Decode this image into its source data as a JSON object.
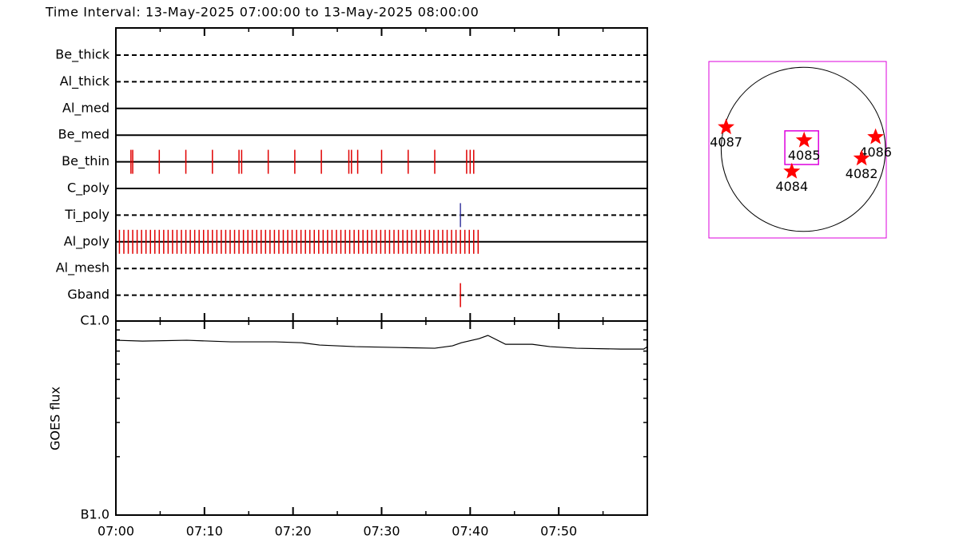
{
  "title": "Time Interval: 13-May-2025 07:00:00 to 13-May-2025 08:00:00",
  "chart_data": [
    {
      "type": "event",
      "color": "#e00000",
      "xlim": [
        0,
        60
      ],
      "minor_xticks": [
        5,
        15,
        25,
        35,
        45,
        55
      ],
      "rows": [
        {
          "name": "Be_thick",
          "style": "dashed",
          "events": []
        },
        {
          "name": "Al_thick",
          "style": "dashed",
          "events": []
        },
        {
          "name": "Al_med",
          "style": "solid",
          "events": []
        },
        {
          "name": "Be_med",
          "style": "solid",
          "events": []
        },
        {
          "name": "Be_thin",
          "style": "solid",
          "events": [
            1.7,
            1.9,
            4.9,
            7.9,
            10.9,
            13.9,
            14.2,
            17.2,
            20.2,
            23.2,
            26.3,
            26.6,
            27.3,
            30.0,
            33.0,
            36.0,
            39.6,
            40.0,
            40.4
          ]
        },
        {
          "name": "C_poly",
          "style": "solid",
          "events": []
        },
        {
          "name": "Ti_poly",
          "style": "dashed",
          "events": [
            38.9
          ],
          "color": "#3a3aa0"
        },
        {
          "name": "Al_poly",
          "style": "solid",
          "events": [
            0.4,
            0.9,
            1.4,
            1.9,
            2.4,
            2.9,
            3.4,
            3.9,
            4.4,
            4.9,
            5.4,
            5.9,
            6.4,
            6.9,
            7.4,
            7.9,
            8.4,
            8.9,
            9.4,
            9.9,
            10.4,
            10.9,
            11.4,
            11.9,
            12.4,
            12.9,
            13.4,
            13.9,
            14.4,
            14.9,
            15.4,
            15.9,
            16.4,
            16.9,
            17.4,
            17.9,
            18.4,
            18.9,
            19.4,
            19.9,
            20.4,
            20.9,
            21.4,
            21.9,
            22.4,
            22.9,
            23.4,
            23.9,
            24.4,
            24.9,
            25.4,
            25.9,
            26.4,
            26.9,
            27.4,
            27.9,
            28.4,
            28.9,
            29.4,
            29.9,
            30.4,
            30.9,
            31.4,
            31.9,
            32.4,
            32.9,
            33.4,
            33.9,
            34.4,
            34.9,
            35.4,
            35.9,
            36.4,
            36.9,
            37.4,
            37.9,
            38.4,
            38.9,
            39.4,
            39.9,
            40.4,
            40.9
          ]
        },
        {
          "name": "Al_mesh",
          "style": "dashed",
          "events": []
        },
        {
          "name": "Gband",
          "style": "dashed",
          "events": [
            38.9
          ]
        }
      ]
    },
    {
      "type": "line",
      "ylabel": "GOES flux",
      "color": "#000000",
      "log_scale": true,
      "xlim": [
        0,
        60
      ],
      "xticks": [
        {
          "value": 0,
          "label": "07:00"
        },
        {
          "value": 10,
          "label": "07:10"
        },
        {
          "value": 20,
          "label": "07:20"
        },
        {
          "value": 30,
          "label": "07:30"
        },
        {
          "value": 40,
          "label": "07:40"
        },
        {
          "value": 50,
          "label": "07:50"
        }
      ],
      "minor_xticks": [
        5,
        15,
        25,
        35,
        45,
        55
      ],
      "ylim": [
        1e-07,
        1e-06
      ],
      "yticks": [
        {
          "value": 1e-06,
          "label": "C1.0"
        },
        {
          "value": 1e-07,
          "label": "B1.0"
        }
      ],
      "minor_yticks": [
        2e-07,
        3e-07,
        4e-07,
        5e-07,
        6e-07,
        7e-07,
        8e-07,
        9e-07
      ],
      "x": [
        0,
        3,
        8,
        13,
        18,
        21,
        23,
        27,
        32,
        36,
        38,
        39,
        41,
        42,
        44,
        47,
        49,
        52,
        57,
        59.6,
        60
      ],
      "values": [
        7.96e-07,
        7.88e-07,
        7.96e-07,
        7.81e-07,
        7.81e-07,
        7.73e-07,
        7.52e-07,
        7.38e-07,
        7.3e-07,
        7.24e-07,
        7.45e-07,
        7.73e-07,
        8.11e-07,
        8.43e-07,
        7.59e-07,
        7.59e-07,
        7.38e-07,
        7.24e-07,
        7.17e-07,
        7.17e-07,
        7.38e-07
      ]
    },
    {
      "type": "scatter",
      "color": "#ff0000",
      "frame_color": "#dd00dd",
      "xlim": [
        -1.15,
        1.01
      ],
      "ylim": [
        -1.08,
        1.07
      ],
      "disk_radius": 1,
      "fov": {
        "center": [
          -0.02,
          0.02
        ],
        "size": 0.41
      },
      "labels": [
        "4087",
        "4085",
        "4086",
        "4082",
        "4084"
      ],
      "x": [
        -0.94,
        0.01,
        0.88,
        0.71,
        -0.14
      ],
      "y": [
        0.27,
        0.11,
        0.15,
        -0.11,
        -0.27
      ]
    }
  ]
}
